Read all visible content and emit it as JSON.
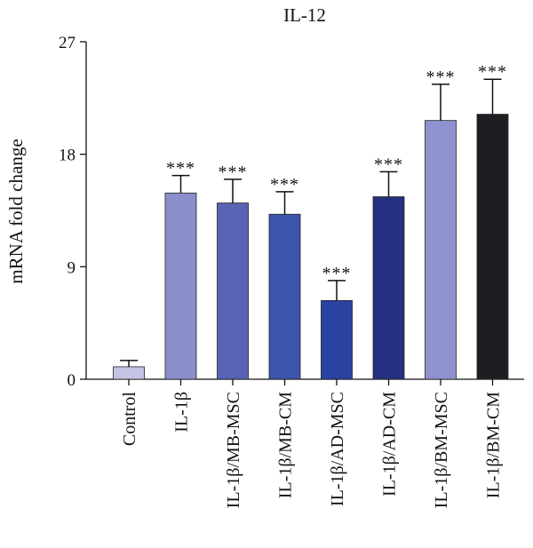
{
  "chart_data": {
    "type": "bar",
    "title": "IL-12",
    "ylabel": "mRNA fold change",
    "xlabel": "",
    "ylim": [
      0,
      27
    ],
    "yticks": [
      "0",
      "9",
      "18",
      "27"
    ],
    "categories": [
      "Control",
      "IL-1β",
      "IL-1β/MB-MSC",
      "IL-1β/MB-CM",
      "IL-1β/AD-MSC",
      "IL-1β/AD-CM",
      "IL-1β/BM-MSC",
      "IL-1β/BM-CM"
    ],
    "values": [
      1.0,
      14.9,
      14.1,
      13.2,
      6.3,
      14.6,
      20.7,
      21.2
    ],
    "errors": [
      0.5,
      1.4,
      1.9,
      1.8,
      1.6,
      2.0,
      2.9,
      2.8
    ],
    "significance": [
      "",
      "***",
      "***",
      "***",
      "***",
      "***",
      "***",
      "***"
    ],
    "colors": [
      "#c3c3e4",
      "#8a8fca",
      "#5a62b3",
      "#3a55ab",
      "#2a42a0",
      "#252f7f",
      "#8e93d0",
      "#1e1e22"
    ],
    "grid": false,
    "legend": "none"
  }
}
